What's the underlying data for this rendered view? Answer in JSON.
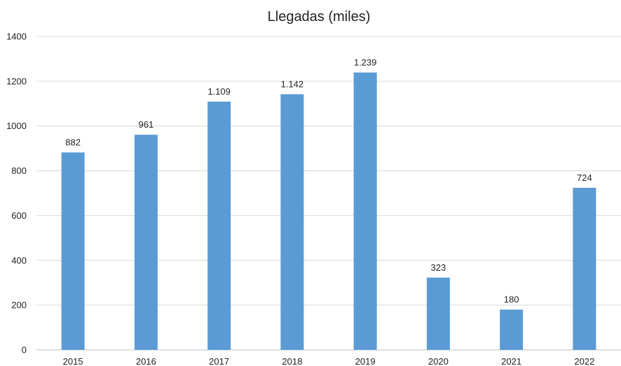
{
  "chart_data": {
    "type": "bar",
    "title": "Llegadas (miles)",
    "xlabel": "",
    "ylabel": "",
    "categories": [
      "2015",
      "2016",
      "2017",
      "2018",
      "2019",
      "2020",
      "2021",
      "2022"
    ],
    "values": [
      882,
      961,
      1109,
      1142,
      1239,
      323,
      180,
      724
    ],
    "data_labels": [
      "882",
      "961",
      "1.109",
      "1.142",
      "1.239",
      "323",
      "180",
      "724"
    ],
    "ylim": [
      0,
      1400
    ],
    "yticks": [
      0,
      200,
      400,
      600,
      800,
      1000,
      1200,
      1400
    ],
    "grid": true,
    "legend": "none",
    "bar_color": "#5B9BD5",
    "grid_color": "#D9D9D9",
    "axis_color": "#BFBFBF"
  }
}
